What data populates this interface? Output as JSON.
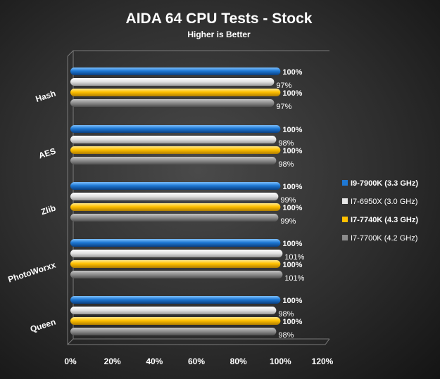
{
  "chart_data": {
    "type": "bar",
    "orientation": "horizontal",
    "title": "AIDA 64 CPU Tests - Stock",
    "subtitle": "Higher is Better",
    "categories": [
      "Hash",
      "AES",
      "Zlib",
      "PhotoWorxx",
      "Queen"
    ],
    "series": [
      {
        "name": "I9-7900K (3.3 GHz)",
        "color": "#1e78d4",
        "bold": true,
        "values": [
          100,
          100,
          100,
          100,
          100
        ],
        "labels": [
          "100%",
          "100%",
          "100%",
          "100%",
          "100%"
        ]
      },
      {
        "name": "I7-6950X (3.0 GHz)",
        "color": "#e6e6e6",
        "bold": false,
        "values": [
          97,
          98,
          99,
          101,
          98
        ],
        "labels": [
          "97%",
          "98%",
          "99%",
          "101%",
          "98%"
        ]
      },
      {
        "name": "I7-7740K (4.3 GHz)",
        "color": "#ffc000",
        "bold": true,
        "values": [
          100,
          100,
          100,
          100,
          100
        ],
        "labels": [
          "100%",
          "100%",
          "100%",
          "100%",
          "100%"
        ]
      },
      {
        "name": "I7-7700K (4.2 GHz)",
        "color": "#8c8c8c",
        "bold": false,
        "values": [
          97,
          98,
          99,
          101,
          98
        ],
        "labels": [
          "97%",
          "98%",
          "99%",
          "101%",
          "98%"
        ]
      }
    ],
    "xlim": [
      0,
      120
    ],
    "xticks": [
      "0%",
      "20%",
      "40%",
      "60%",
      "80%",
      "100%",
      "120%"
    ],
    "legend_position": "right",
    "grid": false
  }
}
